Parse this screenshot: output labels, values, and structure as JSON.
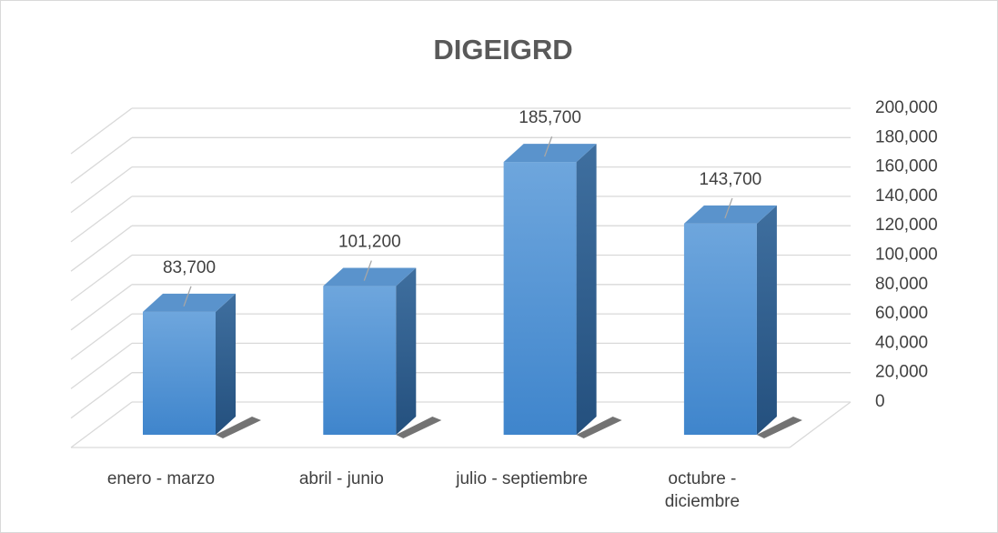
{
  "chart_data": {
    "type": "bar3d",
    "title": "DIGEIGRD",
    "categories": [
      "enero - marzo",
      "abril - junio",
      "julio - septiembre",
      "octubre - diciembre"
    ],
    "values": [
      83700,
      101200,
      185700,
      143700
    ],
    "value_labels": [
      "83,700",
      "101,200",
      "185,700",
      "143,700"
    ],
    "color": "#5b9bd5",
    "ylim": [
      0,
      200000
    ],
    "yticks": [
      0,
      {
        "value": 20000,
        "label": "20,000"
      },
      {
        "value": 40000,
        "label": "40,000"
      },
      {
        "value": 60000,
        "label": "60,000"
      },
      {
        "value": 80000,
        "label": "80,000"
      },
      {
        "value": 100000,
        "label": "100,000"
      },
      {
        "value": 120000,
        "label": "120,000"
      },
      {
        "value": 140000,
        "label": "140,000"
      },
      {
        "value": 160000,
        "label": "160,000"
      },
      {
        "value": 180000,
        "label": "180,000"
      },
      {
        "value": 200000,
        "label": "200,000"
      }
    ],
    "grid": true
  }
}
